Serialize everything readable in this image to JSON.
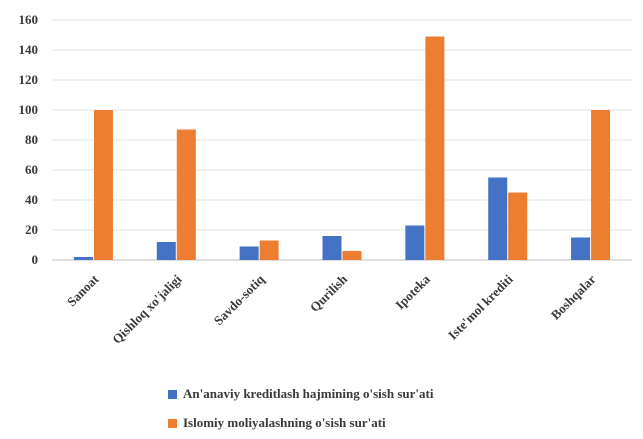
{
  "chart_data": {
    "type": "bar",
    "categories": [
      "Sanoat",
      "Qishloq xo'jaligi",
      "Savdo-sotiq",
      "Qurilish",
      "Ipoteka",
      "Iste'mol krediti",
      "Boshqalar"
    ],
    "series": [
      {
        "name": "An'anaviy kreditlash hajmining o'sish sur'ati",
        "color": "#4472c4",
        "values": [
          2,
          12,
          9,
          16,
          23,
          55,
          15
        ]
      },
      {
        "name": "Islomiy moliyalashning o'sish sur'ati",
        "color": "#ed7d31",
        "values": [
          100,
          87,
          13,
          6,
          149,
          45,
          100
        ]
      }
    ],
    "ylim": [
      0,
      160
    ],
    "yticks": [
      "0",
      "20",
      "40",
      "60",
      "80",
      "100",
      "120",
      "140",
      "160"
    ],
    "grid": true,
    "legend_position": "bottom"
  }
}
